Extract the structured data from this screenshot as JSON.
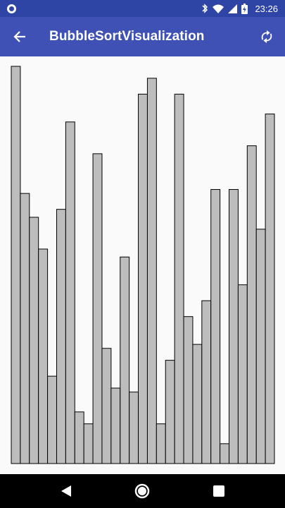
{
  "status_bar": {
    "time": "23:26",
    "icons": [
      "notification-dot-icon",
      "bluetooth-icon",
      "wifi-icon",
      "cell-signal-icon",
      "battery-charging-icon"
    ]
  },
  "app_bar": {
    "title": "BubbleSortVisualization",
    "back_icon": "arrow-back-icon",
    "refresh_icon": "refresh-icon",
    "background": "#3f51b5"
  },
  "visualization": {
    "bar_fill": "#bdbdbd",
    "bar_stroke": "#000000",
    "max_value": 100,
    "values": [
      100,
      68,
      62,
      54,
      22,
      64,
      86,
      13,
      10,
      78,
      29,
      19,
      52,
      18,
      93,
      97,
      10,
      26,
      93,
      37,
      30,
      41,
      69,
      5,
      69,
      45,
      80,
      59,
      88
    ]
  },
  "nav_bar": {
    "icons": [
      "nav-back-icon",
      "nav-home-icon",
      "nav-recents-icon"
    ]
  }
}
